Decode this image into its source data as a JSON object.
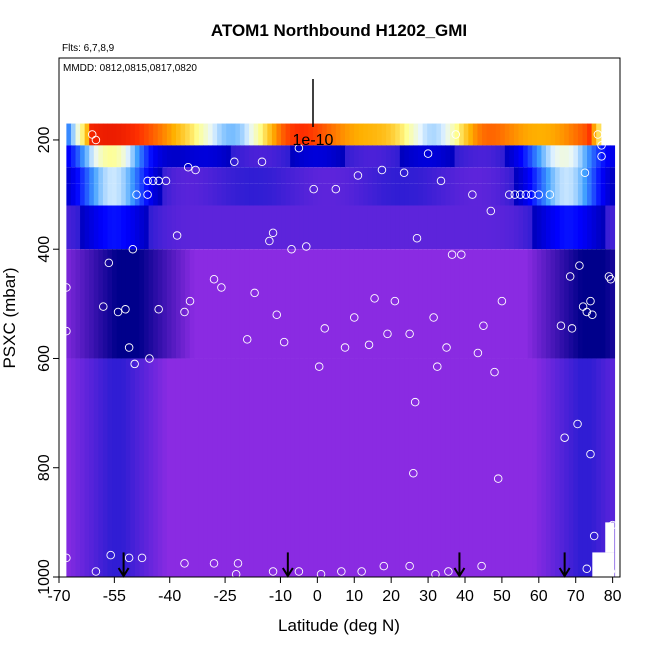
{
  "chart_data": {
    "type": "heatmap",
    "title": "ATOM1 Northbound H1202_GMI",
    "subtitle_flights": "Flts: 6,7,8,9",
    "subtitle_dates": "MMDD: 0812,0815,0817,0820",
    "xlabel": "Latitude (deg N)",
    "ylabel": "PSXC (mbar)",
    "xlim": [
      -70,
      82
    ],
    "ylim": [
      1000,
      50
    ],
    "x_ticks": [
      -70,
      -55,
      -40,
      -25,
      -10,
      0,
      10,
      20,
      30,
      40,
      50,
      60,
      70,
      80
    ],
    "y_ticks": [
      200,
      400,
      600,
      800,
      1000
    ],
    "scale_bar_label": "1e-10",
    "legend": "none",
    "grid": false,
    "colors": {
      "background_low": "#8a2be2",
      "mid": "#1a1ad0",
      "dark": "#00008b",
      "light": "#b0e0ff",
      "hot": "#ff2000",
      "points": "#ffffff",
      "arrows": "#000000"
    },
    "model_field_rows": [
      {
        "p_top": 170,
        "p_bot": 210,
        "level": "high",
        "note": "red/yellow band at top"
      },
      {
        "p_top": 210,
        "p_bot": 250,
        "level": "mid_light"
      },
      {
        "p_top": 250,
        "p_bot": 280,
        "level": "mid"
      },
      {
        "p_top": 280,
        "p_bot": 320,
        "level": "mid"
      },
      {
        "p_top": 320,
        "p_bot": 400,
        "level": "dark"
      },
      {
        "p_top": 400,
        "p_bot": 600,
        "level": "dark_blue"
      },
      {
        "p_top": 600,
        "p_bot": 1000,
        "level": "low"
      }
    ],
    "obs_points": [
      {
        "lat": -68.0,
        "p": 470
      },
      {
        "lat": -68.0,
        "p": 550
      },
      {
        "lat": -61.0,
        "p": 190
      },
      {
        "lat": -60.0,
        "p": 200
      },
      {
        "lat": -58.0,
        "p": 505
      },
      {
        "lat": -56.5,
        "p": 425
      },
      {
        "lat": -54.0,
        "p": 515
      },
      {
        "lat": -52.0,
        "p": 510
      },
      {
        "lat": -49.0,
        "p": 300
      },
      {
        "lat": -46.0,
        "p": 300
      },
      {
        "lat": -46.0,
        "p": 275
      },
      {
        "lat": -44.5,
        "p": 275
      },
      {
        "lat": -43.0,
        "p": 275
      },
      {
        "lat": -41.0,
        "p": 275
      },
      {
        "lat": -38.0,
        "p": 375
      },
      {
        "lat": -35.0,
        "p": 250
      },
      {
        "lat": -33.0,
        "p": 255
      },
      {
        "lat": -50.0,
        "p": 400
      },
      {
        "lat": -51.0,
        "p": 580
      },
      {
        "lat": -49.5,
        "p": 610
      },
      {
        "lat": -45.5,
        "p": 600
      },
      {
        "lat": -43.0,
        "p": 510
      },
      {
        "lat": -36.0,
        "p": 515
      },
      {
        "lat": -34.5,
        "p": 495
      },
      {
        "lat": -28.0,
        "p": 455
      },
      {
        "lat": -26.0,
        "p": 470
      },
      {
        "lat": -22.5,
        "p": 240
      },
      {
        "lat": -19.0,
        "p": 565
      },
      {
        "lat": -17.0,
        "p": 480
      },
      {
        "lat": -15.0,
        "p": 240
      },
      {
        "lat": -13.0,
        "p": 385
      },
      {
        "lat": -12.0,
        "p": 370
      },
      {
        "lat": -11.0,
        "p": 520
      },
      {
        "lat": -9.0,
        "p": 570
      },
      {
        "lat": -7.0,
        "p": 400
      },
      {
        "lat": -5.0,
        "p": 215
      },
      {
        "lat": -3.0,
        "p": 395
      },
      {
        "lat": -1.0,
        "p": 290
      },
      {
        "lat": 0.5,
        "p": 615
      },
      {
        "lat": 2.0,
        "p": 545
      },
      {
        "lat": 5.0,
        "p": 290
      },
      {
        "lat": 7.5,
        "p": 580
      },
      {
        "lat": 10.0,
        "p": 525
      },
      {
        "lat": 11.0,
        "p": 265
      },
      {
        "lat": 14.0,
        "p": 575
      },
      {
        "lat": 15.5,
        "p": 490
      },
      {
        "lat": 17.5,
        "p": 255
      },
      {
        "lat": 19.0,
        "p": 555
      },
      {
        "lat": 21.0,
        "p": 495
      },
      {
        "lat": 23.5,
        "p": 260
      },
      {
        "lat": 25.0,
        "p": 555
      },
      {
        "lat": 26.0,
        "p": 810
      },
      {
        "lat": 26.5,
        "p": 680
      },
      {
        "lat": 27.0,
        "p": 380
      },
      {
        "lat": 30.0,
        "p": 225
      },
      {
        "lat": 31.5,
        "p": 525
      },
      {
        "lat": 32.5,
        "p": 615
      },
      {
        "lat": 33.5,
        "p": 275
      },
      {
        "lat": 35.0,
        "p": 580
      },
      {
        "lat": 36.5,
        "p": 410
      },
      {
        "lat": 37.5,
        "p": 190
      },
      {
        "lat": 39.0,
        "p": 410
      },
      {
        "lat": 42.0,
        "p": 300
      },
      {
        "lat": 43.5,
        "p": 590
      },
      {
        "lat": 45.0,
        "p": 540
      },
      {
        "lat": 47.0,
        "p": 330
      },
      {
        "lat": 48.0,
        "p": 625
      },
      {
        "lat": 49.0,
        "p": 820
      },
      {
        "lat": 50.0,
        "p": 495
      },
      {
        "lat": 52.0,
        "p": 300
      },
      {
        "lat": 53.5,
        "p": 300
      },
      {
        "lat": 55.0,
        "p": 300
      },
      {
        "lat": 56.5,
        "p": 300
      },
      {
        "lat": 58.0,
        "p": 300
      },
      {
        "lat": 60.0,
        "p": 300
      },
      {
        "lat": 63.0,
        "p": 300
      },
      {
        "lat": 66.0,
        "p": 540
      },
      {
        "lat": 67.0,
        "p": 745
      },
      {
        "lat": 68.5,
        "p": 450
      },
      {
        "lat": 69.0,
        "p": 545
      },
      {
        "lat": 70.5,
        "p": 720
      },
      {
        "lat": 71.0,
        "p": 430
      },
      {
        "lat": 72.0,
        "p": 505
      },
      {
        "lat": 72.5,
        "p": 260
      },
      {
        "lat": 73.0,
        "p": 515
      },
      {
        "lat": 74.0,
        "p": 495
      },
      {
        "lat": 74.0,
        "p": 775
      },
      {
        "lat": 74.5,
        "p": 520
      },
      {
        "lat": 75.0,
        "p": 925
      },
      {
        "lat": 76.0,
        "p": 190
      },
      {
        "lat": 77.0,
        "p": 210
      },
      {
        "lat": 77.0,
        "p": 230
      },
      {
        "lat": 79.0,
        "p": 450
      },
      {
        "lat": 79.5,
        "p": 455
      },
      {
        "lat": 80.0,
        "p": 905
      },
      {
        "lat": -68.0,
        "p": 965
      },
      {
        "lat": -60.0,
        "p": 990
      },
      {
        "lat": -56.0,
        "p": 960
      },
      {
        "lat": -51.0,
        "p": 965
      },
      {
        "lat": -47.5,
        "p": 965
      },
      {
        "lat": -36.0,
        "p": 975
      },
      {
        "lat": -28.0,
        "p": 975
      },
      {
        "lat": -21.5,
        "p": 975
      },
      {
        "lat": -22.0,
        "p": 995
      },
      {
        "lat": -12.0,
        "p": 990
      },
      {
        "lat": -5.0,
        "p": 990
      },
      {
        "lat": 1.0,
        "p": 995
      },
      {
        "lat": 6.5,
        "p": 990
      },
      {
        "lat": 12.0,
        "p": 990
      },
      {
        "lat": 18.0,
        "p": 980
      },
      {
        "lat": 25.0,
        "p": 980
      },
      {
        "lat": 32.0,
        "p": 995
      },
      {
        "lat": 35.5,
        "p": 990
      },
      {
        "lat": 44.5,
        "p": 980
      },
      {
        "lat": 73.0,
        "p": 985
      },
      {
        "lat": 79.5,
        "p": 990
      }
    ],
    "arrows_lat": [
      -52.5,
      -8.0,
      38.5,
      67.0
    ]
  }
}
